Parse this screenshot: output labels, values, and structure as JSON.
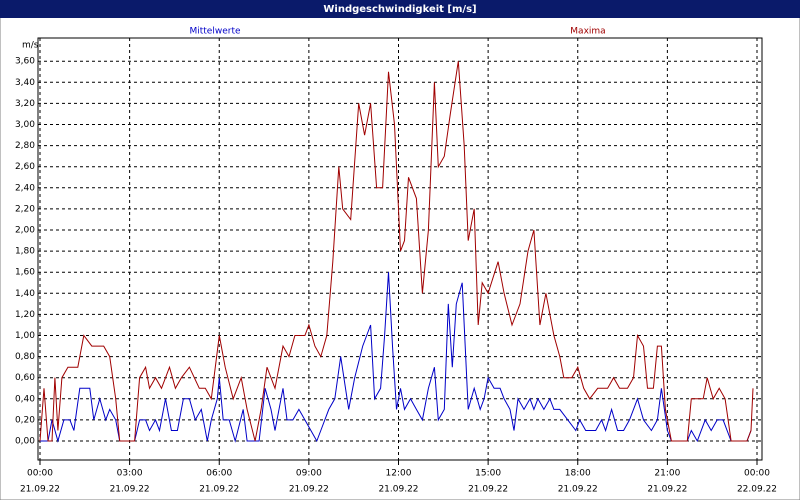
{
  "chart_data": {
    "type": "line",
    "title": "Windgeschwindigkeit [m/s]",
    "y_label": "m/s",
    "xlim": [
      0,
      1440
    ],
    "ylim": [
      -0.18,
      3.82
    ],
    "grid": true,
    "xticks": [
      {
        "value": 0,
        "label": "00:00"
      },
      {
        "value": 180,
        "label": "03:00"
      },
      {
        "value": 360,
        "label": "06:00"
      },
      {
        "value": 540,
        "label": "09:00"
      },
      {
        "value": 720,
        "label": "12:00"
      },
      {
        "value": 900,
        "label": "15:00"
      },
      {
        "value": 1080,
        "label": "18:00"
      },
      {
        "value": 1260,
        "label": "21:00"
      },
      {
        "value": 1440,
        "label": "00:00"
      }
    ],
    "xtick_dates": [
      "21.09.22",
      "21.09.22",
      "21.09.22",
      "21.09.22",
      "21.09.22",
      "21.09.22",
      "21.09.22",
      "21.09.22",
      "22.09.22"
    ],
    "yticks": [
      {
        "value": 0,
        "label": "0,00"
      },
      {
        "value": 0.2,
        "label": "0,20"
      },
      {
        "value": 0.4,
        "label": "0,40"
      },
      {
        "value": 0.6,
        "label": "0,60"
      },
      {
        "value": 0.8,
        "label": "0,80"
      },
      {
        "value": 1.0,
        "label": "1,00"
      },
      {
        "value": 1.2,
        "label": "1,20"
      },
      {
        "value": 1.4,
        "label": "1,40"
      },
      {
        "value": 1.6,
        "label": "1,60"
      },
      {
        "value": 1.8,
        "label": "1,80"
      },
      {
        "value": 2.0,
        "label": "2,00"
      },
      {
        "value": 2.2,
        "label": "2,20"
      },
      {
        "value": 2.4,
        "label": "2,40"
      },
      {
        "value": 2.6,
        "label": "2,60"
      },
      {
        "value": 2.8,
        "label": "2,80"
      },
      {
        "value": 3.0,
        "label": "3,00"
      },
      {
        "value": 3.2,
        "label": "3,20"
      },
      {
        "value": 3.4,
        "label": "3,40"
      },
      {
        "value": 3.6,
        "label": "3,60"
      }
    ],
    "series": [
      {
        "name": "Mittelwerte",
        "color": "#0000c8",
        "x": [
          0,
          16,
          24,
          36,
          48,
          60,
          68,
          80,
          100,
          108,
          120,
          132,
          140,
          152,
          160,
          190,
          200,
          212,
          220,
          232,
          240,
          252,
          264,
          276,
          288,
          300,
          312,
          324,
          336,
          344,
          356,
          360,
          368,
          380,
          392,
          408,
          416,
          432,
          440,
          452,
          464,
          472,
          488,
          496,
          508,
          520,
          532,
          544,
          556,
          564,
          580,
          592,
          604,
          620,
          632,
          648,
          664,
          672,
          684,
          692,
          700,
          708,
          716,
          724,
          732,
          744,
          756,
          768,
          780,
          792,
          800,
          812,
          820,
          828,
          836,
          848,
          860,
          872,
          884,
          892,
          900,
          912,
          924,
          932,
          944,
          952,
          960,
          972,
          984,
          992,
          1000,
          1012,
          1024,
          1032,
          1044,
          1060,
          1076,
          1084,
          1096,
          1116,
          1128,
          1136,
          1148,
          1160,
          1172,
          1184,
          1192,
          1200,
          1212,
          1228,
          1240,
          1248,
          1260,
          1268,
          1300,
          1308,
          1320,
          1336,
          1348,
          1360,
          1372,
          1388,
          1420,
          1428
        ],
        "values": [
          0,
          0,
          0.2,
          0,
          0.2,
          0.2,
          0.1,
          0.5,
          0.5,
          0.2,
          0.4,
          0.2,
          0.3,
          0.2,
          0,
          0,
          0.2,
          0.2,
          0.1,
          0.2,
          0.1,
          0.4,
          0.1,
          0.1,
          0.4,
          0.4,
          0.2,
          0.3,
          0,
          0.2,
          0.4,
          0.6,
          0.2,
          0.2,
          0,
          0.3,
          0,
          0,
          0,
          0.5,
          0.3,
          0.1,
          0.5,
          0.2,
          0.2,
          0.3,
          0.2,
          0.1,
          0,
          0.1,
          0.3,
          0.4,
          0.8,
          0.3,
          0.6,
          0.9,
          1.1,
          0.4,
          0.5,
          1.0,
          1.6,
          0.9,
          0.3,
          0.5,
          0.3,
          0.4,
          0.3,
          0.2,
          0.5,
          0.7,
          0.2,
          0.3,
          1.3,
          0.7,
          1.3,
          1.5,
          0.3,
          0.5,
          0.3,
          0.4,
          0.6,
          0.5,
          0.5,
          0.4,
          0.3,
          0.1,
          0.4,
          0.3,
          0.4,
          0.3,
          0.4,
          0.3,
          0.4,
          0.3,
          0.3,
          0.2,
          0.1,
          0.2,
          0.1,
          0.1,
          0.2,
          0.1,
          0.3,
          0.1,
          0.1,
          0.2,
          0.3,
          0.4,
          0.2,
          0.1,
          0.2,
          0.5,
          0.1,
          0,
          0,
          0.1,
          0,
          0.2,
          0.1,
          0.2,
          0.2,
          0,
          0,
          0.1
        ]
      },
      {
        "name": "Maxima",
        "color": "#a00000",
        "x": [
          0,
          8,
          16,
          24,
          30,
          36,
          44,
          56,
          76,
          88,
          104,
          128,
          140,
          152,
          160,
          190,
          200,
          212,
          220,
          232,
          244,
          260,
          272,
          284,
          300,
          320,
          332,
          344,
          360,
          372,
          388,
          404,
          416,
          432,
          444,
          456,
          472,
          488,
          500,
          512,
          532,
          540,
          552,
          564,
          576,
          588,
          600,
          608,
          624,
          640,
          652,
          664,
          676,
          688,
          700,
          712,
          724,
          732,
          740,
          756,
          768,
          780,
          792,
          800,
          812,
          824,
          840,
          852,
          860,
          872,
          880,
          888,
          900,
          920,
          932,
          948,
          964,
          980,
          992,
          1004,
          1016,
          1032,
          1044,
          1052,
          1068,
          1080,
          1092,
          1104,
          1120,
          1140,
          1152,
          1164,
          1180,
          1192,
          1200,
          1212,
          1220,
          1232,
          1240,
          1248,
          1256,
          1268,
          1300,
          1308,
          1332,
          1340,
          1352,
          1364,
          1376,
          1388,
          1420,
          1428,
          1432
        ],
        "values": [
          0,
          0.5,
          0,
          0,
          0.6,
          0.1,
          0.6,
          0.7,
          0.7,
          1.0,
          0.9,
          0.9,
          0.8,
          0.4,
          0,
          0,
          0.6,
          0.7,
          0.5,
          0.6,
          0.5,
          0.7,
          0.5,
          0.6,
          0.7,
          0.5,
          0.5,
          0.4,
          1.0,
          0.7,
          0.4,
          0.6,
          0.3,
          0,
          0.3,
          0.7,
          0.5,
          0.9,
          0.8,
          1.0,
          1.0,
          1.1,
          0.9,
          0.8,
          1.0,
          1.7,
          2.6,
          2.2,
          2.1,
          3.2,
          2.9,
          3.2,
          2.4,
          2.4,
          3.5,
          3.0,
          1.8,
          1.9,
          2.5,
          2.3,
          1.4,
          2.0,
          3.4,
          2.6,
          2.7,
          3.1,
          3.6,
          2.8,
          1.9,
          2.2,
          1.1,
          1.5,
          1.4,
          1.7,
          1.4,
          1.1,
          1.3,
          1.8,
          2.0,
          1.1,
          1.4,
          1.0,
          0.8,
          0.6,
          0.6,
          0.7,
          0.5,
          0.4,
          0.5,
          0.5,
          0.6,
          0.5,
          0.5,
          0.6,
          1.0,
          0.9,
          0.5,
          0.5,
          0.9,
          0.9,
          0.3,
          0,
          0,
          0.4,
          0.4,
          0.6,
          0.4,
          0.5,
          0.4,
          0,
          0,
          0.1,
          0.5
        ]
      }
    ]
  }
}
